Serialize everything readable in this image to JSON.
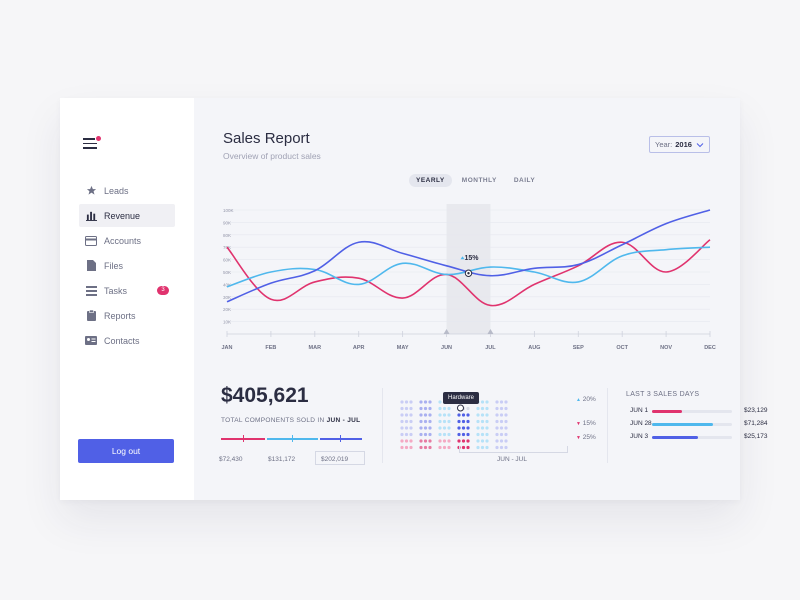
{
  "app": {
    "title": "Sales Report",
    "subtitle": "Overview of product sales"
  },
  "sidebar": {
    "items": [
      {
        "label": "Leads",
        "icon": "star-icon",
        "active": false
      },
      {
        "label": "Revenue",
        "icon": "bar-chart-icon",
        "active": true
      },
      {
        "label": "Accounts",
        "icon": "card-icon",
        "active": false
      },
      {
        "label": "Files",
        "icon": "file-icon",
        "active": false
      },
      {
        "label": "Tasks",
        "icon": "tasks-icon",
        "active": false,
        "badge": "3"
      },
      {
        "label": "Reports",
        "icon": "clipboard-icon",
        "active": false
      },
      {
        "label": "Contacts",
        "icon": "contact-card-icon",
        "active": false
      }
    ],
    "logout_label": "Log out"
  },
  "year_select": {
    "label": "Year:",
    "value": "2016"
  },
  "tabs": [
    {
      "label": "YEARLY",
      "active": true
    },
    {
      "label": "MONTHLY",
      "active": false
    },
    {
      "label": "DAILY",
      "active": false
    }
  ],
  "chart_data": {
    "type": "line",
    "categories": [
      "JAN",
      "FEB",
      "MAR",
      "APR",
      "MAY",
      "JUN",
      "JUL",
      "AUG",
      "SEP",
      "OCT",
      "NOV",
      "DEC"
    ],
    "y_ticks": [
      "100K",
      "90K",
      "80K",
      "70K",
      "60K",
      "50K",
      "40K",
      "30K",
      "20K",
      "10K"
    ],
    "ylim": [
      0,
      100
    ],
    "grid": true,
    "highlight_band": [
      "JUN",
      "JUL"
    ],
    "annotation": "15%",
    "series": [
      {
        "color": "#e0336e",
        "values": [
          70,
          28,
          42,
          45,
          29,
          48,
          23,
          40,
          55,
          74,
          50,
          76
        ]
      },
      {
        "color": "#4fb8ed",
        "values": [
          38,
          50,
          52,
          40,
          57,
          48,
          54,
          50,
          42,
          63,
          68,
          70
        ]
      },
      {
        "color": "#5060e6",
        "values": [
          26,
          41,
          51,
          74,
          65,
          55,
          47,
          53,
          56,
          72,
          89,
          100
        ]
      }
    ]
  },
  "summary": {
    "total": "$405,621",
    "label_prefix": "TOTAL COMPONENTS SOLD IN",
    "label_period": "JUN - JUL",
    "segments": [
      {
        "value": "$72,430",
        "color": "#e0336e"
      },
      {
        "value": "$131,172",
        "color": "#4fb8ed"
      },
      {
        "value": "$202,019",
        "color": "#5060e6"
      }
    ]
  },
  "dots": {
    "tooltip": "Hardware",
    "caption": "JUN - JUL",
    "percentages": [
      {
        "label": "20%",
        "dir": "up",
        "color": "#4fb8ed"
      },
      {
        "label": "15%",
        "dir": "down",
        "color": "#e0336e"
      },
      {
        "label": "25%",
        "dir": "down",
        "color": "#e0336e"
      }
    ]
  },
  "last3": {
    "title": "LAST 3 SALES DAYS",
    "rows": [
      {
        "date": "JUN 1",
        "value": "$23,129",
        "color": "#e0336e",
        "fraction": 0.38
      },
      {
        "date": "JUN 28",
        "value": "$71,284",
        "color": "#4fb8ed",
        "fraction": 0.76
      },
      {
        "date": "JUN 3",
        "value": "$25,173",
        "color": "#5060e6",
        "fraction": 0.58
      }
    ]
  }
}
